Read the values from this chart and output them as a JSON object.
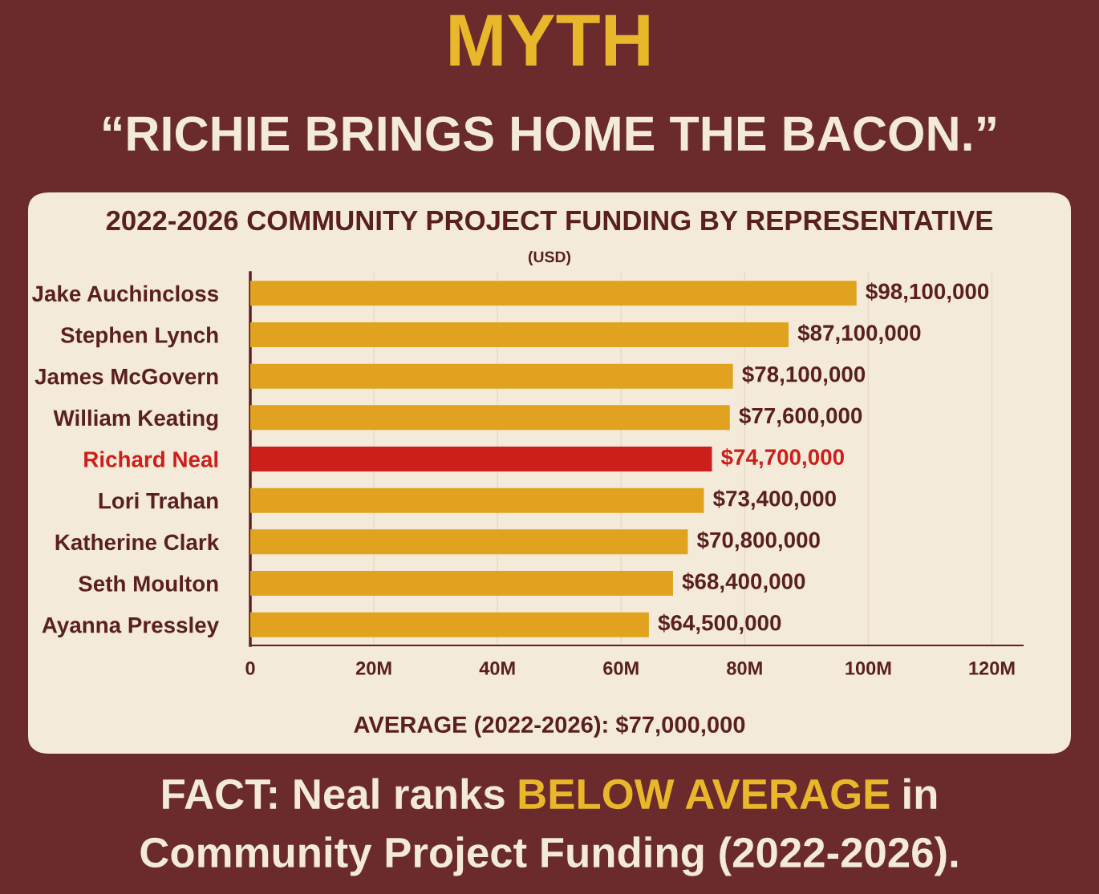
{
  "chart_data": {
    "type": "bar",
    "orientation": "horizontal",
    "title": "MYTH",
    "subtitle": "“RICHIE BRINGS HOME THE BACON.”",
    "categories": [
      "Jake Auchincloss",
      "Stephen Lynch",
      "James McGovern",
      "William Keating",
      "Richard Neal",
      "Lori Trahan",
      "Katherine Clark",
      "Seth Moulton",
      "Ayanna Pressley"
    ],
    "values": [
      98100000,
      87100000,
      78100000,
      77600000,
      74700000,
      73400000,
      70800000,
      68400000,
      64500000
    ],
    "colors": [
      "#e1a31f",
      "#e1a31f",
      "#e1a31f",
      "#e1a31f",
      "#cc1e1a",
      "#e1a31f",
      "#e1a31f",
      "#e1a31f",
      "#e1a31f"
    ],
    "value_labels": [
      "$98,100,000",
      "$87,100,000",
      "$78,100,000",
      "$77,600,000",
      "$74,700,000",
      "$73,400,000",
      "$70,800,000",
      "$68,400,000",
      "$64,500,000"
    ],
    "xlim": [
      0,
      125000000
    ],
    "xticks": [
      0,
      {
        "value": 20000000,
        "label": "20M"
      },
      {
        "value": 40000000,
        "label": "40M"
      },
      {
        "value": 60000000,
        "label": "60M"
      },
      {
        "value": 80000000,
        "label": "80M"
      },
      {
        "value": 100000000,
        "label": "100M"
      },
      {
        "value": 120000000,
        "label": "120M"
      }
    ],
    "grid": "x",
    "legend": false,
    "annotations": [
      "2022-2026 COMMUNITY PROJECT FUNDING BY REPRESENTATIVE",
      "(USD)",
      "AVERAGE (2022-2026): $77,000,000",
      "FACT: Neal ranks",
      "BELOW AVERAGE",
      "in",
      "Community Project Funding (2022-2026)."
    ]
  }
}
